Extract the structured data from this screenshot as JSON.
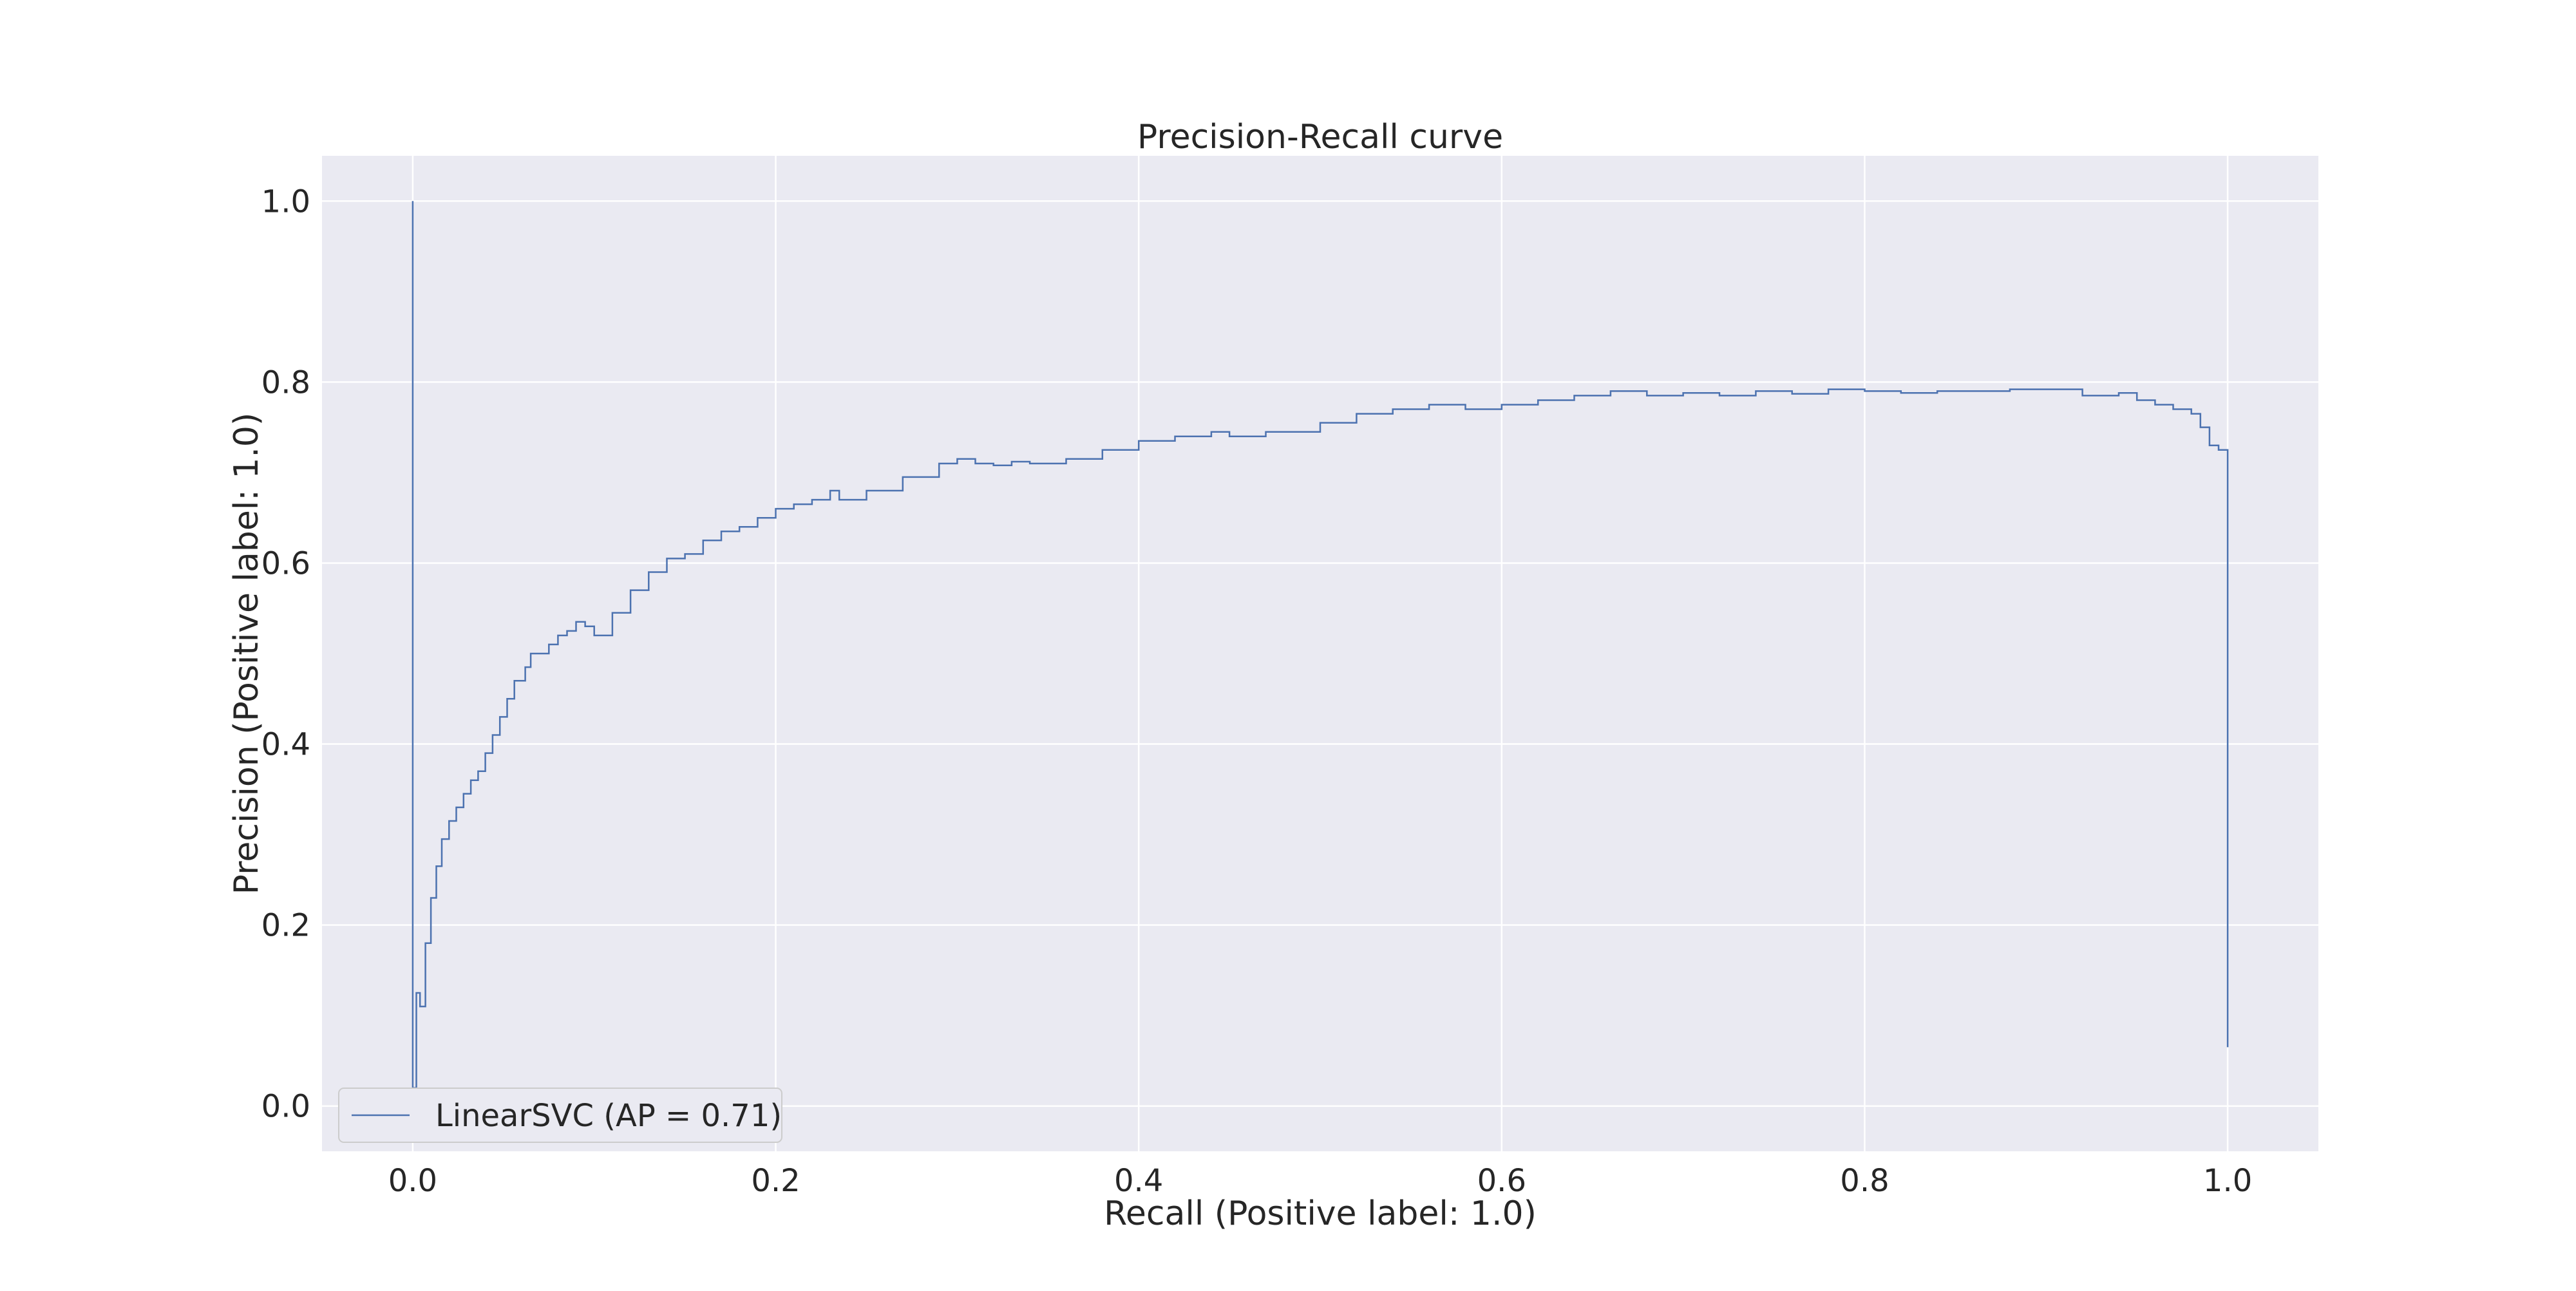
{
  "chart_data": {
    "type": "line",
    "title": "Precision-Recall curve",
    "xlabel": "Recall (Positive label: 1.0)",
    "ylabel": "Precision (Positive label: 1.0)",
    "xlim": [
      -0.05,
      1.05
    ],
    "ylim": [
      -0.05,
      1.05
    ],
    "xticks": [
      0.0,
      0.2,
      0.4,
      0.6,
      0.8,
      1.0
    ],
    "xtick_labels": [
      "0.0",
      "0.2",
      "0.4",
      "0.6",
      "0.8",
      "1.0"
    ],
    "yticks": [
      0.0,
      0.2,
      0.4,
      0.6,
      0.8,
      1.0
    ],
    "ytick_labels": [
      "0.0",
      "0.2",
      "0.4",
      "0.6",
      "0.8",
      "1.0"
    ],
    "grid": true,
    "style": "seaborn-darkgrid",
    "drawstyle": "steps-post",
    "legend_location": "lower-left",
    "colors": {
      "background": "#eaeaf2",
      "grid": "#ffffff",
      "series": "#4c72b0"
    },
    "series": [
      {
        "name": "LinearSVC (AP = 0.71)",
        "x": [
          0.0,
          0.0,
          0.002,
          0.004,
          0.007,
          0.01,
          0.013,
          0.016,
          0.02,
          0.024,
          0.028,
          0.032,
          0.036,
          0.04,
          0.044,
          0.048,
          0.052,
          0.056,
          0.062,
          0.065,
          0.07,
          0.075,
          0.08,
          0.085,
          0.09,
          0.095,
          0.1,
          0.11,
          0.12,
          0.13,
          0.14,
          0.15,
          0.16,
          0.17,
          0.18,
          0.19,
          0.2,
          0.21,
          0.22,
          0.23,
          0.235,
          0.25,
          0.27,
          0.29,
          0.3,
          0.31,
          0.32,
          0.33,
          0.34,
          0.36,
          0.38,
          0.4,
          0.42,
          0.44,
          0.45,
          0.47,
          0.5,
          0.52,
          0.54,
          0.56,
          0.58,
          0.6,
          0.62,
          0.64,
          0.66,
          0.68,
          0.7,
          0.72,
          0.74,
          0.76,
          0.78,
          0.8,
          0.82,
          0.84,
          0.86,
          0.88,
          0.9,
          0.92,
          0.94,
          0.95,
          0.96,
          0.97,
          0.98,
          0.985,
          0.99,
          0.995,
          1.0,
          1.0
        ],
        "y": [
          1.0,
          0.02,
          0.125,
          0.11,
          0.18,
          0.23,
          0.265,
          0.295,
          0.315,
          0.33,
          0.345,
          0.36,
          0.37,
          0.39,
          0.41,
          0.43,
          0.45,
          0.47,
          0.485,
          0.5,
          0.5,
          0.51,
          0.52,
          0.525,
          0.535,
          0.53,
          0.52,
          0.545,
          0.57,
          0.59,
          0.605,
          0.61,
          0.625,
          0.635,
          0.64,
          0.65,
          0.66,
          0.665,
          0.67,
          0.68,
          0.67,
          0.68,
          0.695,
          0.71,
          0.715,
          0.71,
          0.708,
          0.712,
          0.71,
          0.715,
          0.725,
          0.735,
          0.74,
          0.745,
          0.74,
          0.745,
          0.755,
          0.765,
          0.77,
          0.775,
          0.77,
          0.775,
          0.78,
          0.785,
          0.79,
          0.785,
          0.788,
          0.785,
          0.79,
          0.787,
          0.792,
          0.79,
          0.788,
          0.79,
          0.79,
          0.792,
          0.792,
          0.785,
          0.788,
          0.78,
          0.775,
          0.77,
          0.765,
          0.75,
          0.73,
          0.725,
          0.725,
          0.065
        ]
      }
    ]
  }
}
